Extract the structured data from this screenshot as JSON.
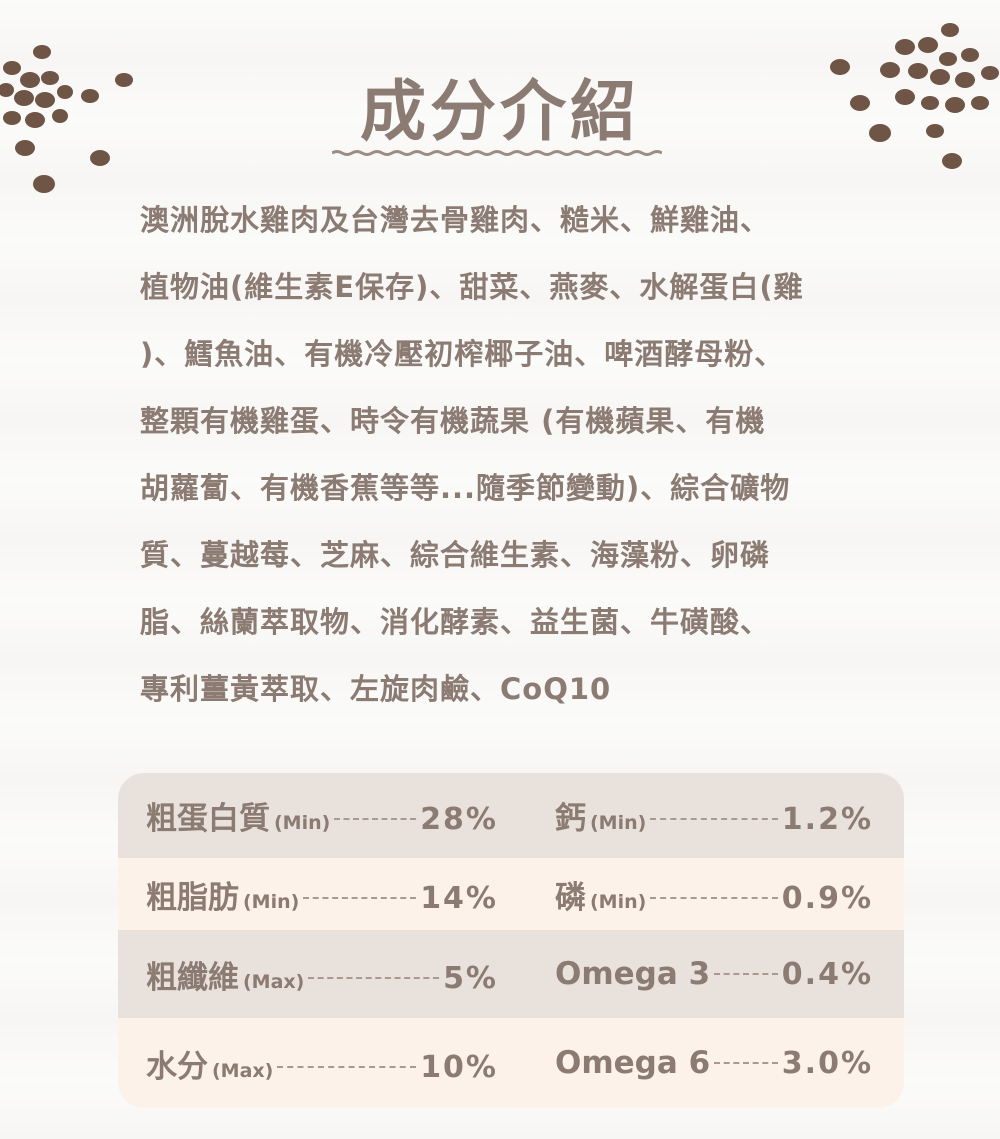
{
  "title": "成分介紹",
  "colors": {
    "text": "#8b7b72",
    "row_dark": "#e9e2dc",
    "row_light": "#fcf2ea",
    "kibble": "#6e5546"
  },
  "decoration_icons": [
    "kibble-cluster-left-icon",
    "kibble-cluster-right-icon"
  ],
  "ingredients_lines": [
    "澳洲脫水雞肉及台灣去骨雞肉、糙米、鮮雞油、",
    "植物油(維生素E保存)、甜菜、燕麥、水解蛋白(雞",
    ")、鱈魚油、有機冷壓初榨椰子油、啤酒酵母粉、",
    "整顆有機雞蛋、時令有機蔬果 (有機蘋果、有機",
    "胡蘿蔔、有機香蕉等等...隨季節變動)、綜合礦物",
    "質、蔓越莓、芝麻、綜合維生素、海藻粉、卵磷",
    "脂、絲蘭萃取物、消化酵素、益生菌、牛磺酸、",
    "專利薑黃萃取、左旋肉鹼、CoQ10"
  ],
  "nutrition": [
    {
      "left": {
        "name": "粗蛋白質",
        "qualifier": "(Min)",
        "value": "28%"
      },
      "right": {
        "name": "鈣",
        "qualifier": "(Min)",
        "value": "1.2%"
      }
    },
    {
      "left": {
        "name": "粗脂肪",
        "qualifier": "(Min)",
        "value": "14%"
      },
      "right": {
        "name": "磷",
        "qualifier": "(Min)",
        "value": "0.9%"
      }
    },
    {
      "left": {
        "name": "粗纖維",
        "qualifier": "(Max)",
        "value": "5%"
      },
      "right": {
        "name": "Omega 3",
        "qualifier": "",
        "value": "0.4%"
      }
    },
    {
      "left": {
        "name": "水分",
        "qualifier": "(Max)",
        "value": "10%"
      },
      "right": {
        "name": "Omega 6",
        "qualifier": "",
        "value": "3.0%"
      }
    }
  ]
}
